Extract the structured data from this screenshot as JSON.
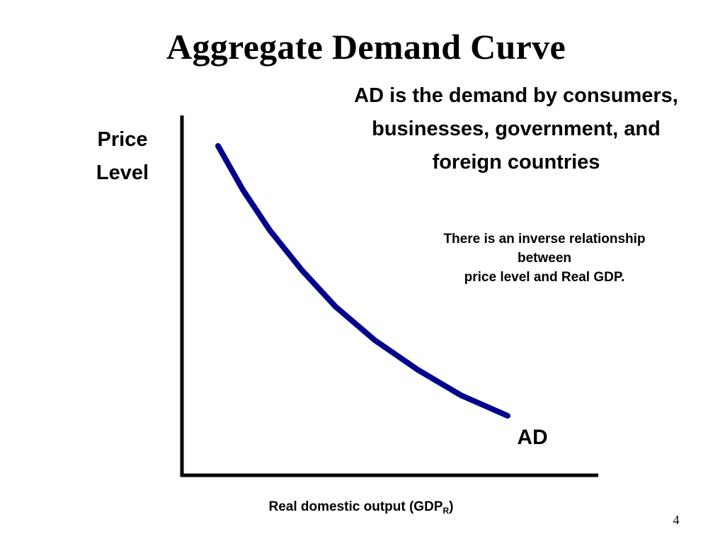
{
  "slide": {
    "title": "Aggregate Demand Curve",
    "definition_lines": [
      "AD is the demand by consumers,",
      "businesses, government, and",
      "foreign countries"
    ],
    "relationship_lines": [
      "There is an inverse relationship",
      "between",
      "price level and Real GDP."
    ],
    "page_number": "4"
  },
  "diagram": {
    "y_axis_label_lines": [
      "Price",
      "Level"
    ],
    "x_axis_label": "Real domestic output (GDP",
    "x_axis_label_subscript": "R",
    "x_axis_label_close": ")",
    "curve_label": "AD",
    "curve_color": "#00008B",
    "axis_color": "#000000"
  }
}
